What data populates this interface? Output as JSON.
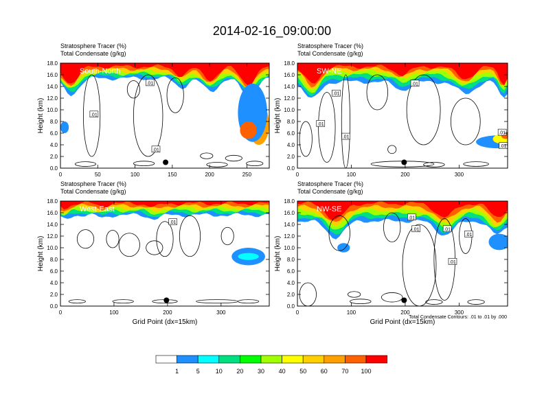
{
  "title": "2014-02-16_09:00:00",
  "footnote": "Total Condensate Contours: .01 to .01 by .000",
  "colorbar": {
    "colors": [
      "#ffffff",
      "#1e90ff",
      "#00ffff",
      "#00e080",
      "#00ff00",
      "#a0ff00",
      "#ffff00",
      "#ffd000",
      "#ffa000",
      "#ff6000",
      "#ff0000"
    ],
    "labels": [
      "1",
      "5",
      "10",
      "20",
      "30",
      "40",
      "50",
      "60",
      "70",
      "100"
    ]
  },
  "chart_data": [
    {
      "type": "heatmap",
      "subtitle_1": "Stratosphere Tracer   (%)",
      "subtitle_2": "Total Condensate   (g/kg)",
      "panel_label": "South-North",
      "ylabel": "Height (km)",
      "xlabel": "",
      "xlim": [
        0,
        280
      ],
      "ylim": [
        0,
        18
      ],
      "xticks": [
        "0",
        "50",
        "100",
        "150",
        "200",
        "250"
      ],
      "xtick_values": [
        0,
        50,
        100,
        150,
        200,
        250
      ],
      "yticks": [
        "0.0",
        "2.0",
        "4.0",
        "6.0",
        "8.0",
        "10.0",
        "12.0",
        "14.0",
        "16.0",
        "18.0"
      ],
      "contour_labels": [
        ".01",
        ".01",
        ".01"
      ],
      "contour_label_pos": [
        [
          120,
          14.6
        ],
        [
          45,
          9.2
        ],
        [
          128,
          3.2
        ]
      ],
      "marker": [
        141,
        1.0
      ]
    },
    {
      "type": "heatmap",
      "subtitle_1": "Stratosphere Tracer   (%)",
      "subtitle_2": "Total Condensate   (g/kg)",
      "panel_label": "SW-NE",
      "ylabel": "Height (km)",
      "xlabel": "",
      "xlim": [
        0,
        390
      ],
      "ylim": [
        0,
        18
      ],
      "xticks": [
        "0",
        "100",
        "200",
        "300"
      ],
      "xtick_values": [
        0,
        100,
        200,
        300
      ],
      "yticks": [
        "0.0",
        "2.0",
        "4.0",
        "6.0",
        "8.0",
        "10.0",
        "12.0",
        "14.0",
        "16.0",
        "18.0"
      ],
      "contour_labels": [
        ".01",
        ".01",
        ".01",
        ".01",
        ".01",
        ".01"
      ],
      "contour_label_pos": [
        [
          72,
          12.8
        ],
        [
          43,
          7.6
        ],
        [
          90,
          5.4
        ],
        [
          218,
          14.5
        ],
        [
          380,
          6.1
        ],
        [
          382,
          3.8
        ]
      ],
      "marker": [
        198,
        1.0
      ]
    },
    {
      "type": "heatmap",
      "subtitle_1": "Stratosphere Tracer   (%)",
      "subtitle_2": "Total Condensate   (g/kg)",
      "panel_label": "West-East",
      "ylabel": "Height (km)",
      "xlabel": "Grid Point (dx=15km)",
      "xlim": [
        0,
        390
      ],
      "ylim": [
        0,
        18
      ],
      "xticks": [
        "0",
        "100",
        "200",
        "300"
      ],
      "xtick_values": [
        0,
        100,
        200,
        300
      ],
      "yticks": [
        "0.0",
        "2.0",
        "4.0",
        "6.0",
        "8.0",
        "10.0",
        "12.0",
        "14.0",
        "16.0",
        "18.0"
      ],
      "contour_labels": [
        ".01"
      ],
      "contour_label_pos": [
        [
          210,
          14.4
        ]
      ],
      "marker": [
        198,
        1.0
      ]
    },
    {
      "type": "heatmap",
      "subtitle_1": "Stratosphere Tracer   (%)",
      "subtitle_2": "Total Condensate   (g/kg)",
      "panel_label": "NW-SE",
      "ylabel": "Height (km)",
      "xlabel": "Grid Point (dx=15km)",
      "xlim": [
        0,
        390
      ],
      "ylim": [
        0,
        18
      ],
      "xticks": [
        "0",
        "100",
        "200",
        "300"
      ],
      "xtick_values": [
        0,
        100,
        200,
        300
      ],
      "yticks": [
        "0.0",
        "2.0",
        "4.0",
        "6.0",
        "8.0",
        "10.0",
        "12.0",
        "14.0",
        "16.0",
        "18.0"
      ],
      "contour_labels": [
        ".01",
        ".01",
        ".01",
        ".01",
        ".01"
      ],
      "contour_label_pos": [
        [
          212,
          15.2
        ],
        [
          220,
          13.2
        ],
        [
          278,
          13.2
        ],
        [
          318,
          12.3
        ],
        [
          288,
          7.6
        ]
      ],
      "marker": [
        198,
        1.0
      ]
    }
  ]
}
